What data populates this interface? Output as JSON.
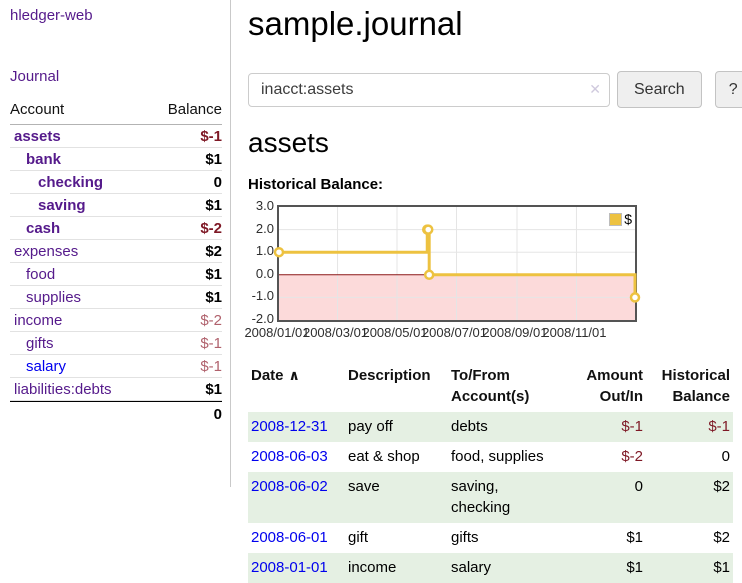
{
  "app": {
    "brand": "hledger-web",
    "nav_journal": "Journal",
    "title": "sample.journal"
  },
  "search": {
    "value": "inacct:assets",
    "button_label": "Search",
    "help_label": "?",
    "clear_icon": "✕"
  },
  "sidebar": {
    "header": {
      "account": "Account",
      "balance": "Balance"
    },
    "accounts": [
      {
        "name": "assets",
        "balance": "$-1"
      },
      {
        "name": "bank",
        "balance": "$1"
      },
      {
        "name": "checking",
        "balance": "0"
      },
      {
        "name": "saving",
        "balance": "$1"
      },
      {
        "name": "cash",
        "balance": "$-2"
      },
      {
        "name": "expenses",
        "balance": "$2"
      },
      {
        "name": "food",
        "balance": "$1"
      },
      {
        "name": "supplies",
        "balance": "$1"
      },
      {
        "name": "income",
        "balance": "$-2"
      },
      {
        "name": "gifts",
        "balance": "$-1"
      },
      {
        "name": "salary",
        "balance": "$-1"
      },
      {
        "name": "liabilities:debts",
        "balance": "$1"
      }
    ],
    "total": "0"
  },
  "account_page": {
    "heading": "assets",
    "chart_title": "Historical Balance:"
  },
  "chart_data": {
    "type": "line",
    "title": "Historical Balance",
    "legend": "$",
    "legend_position": "top-right",
    "grid": true,
    "x_range": [
      "2008-01-01",
      "2008-12-31"
    ],
    "ylim": [
      -2,
      3
    ],
    "y_ticks": [
      3.0,
      2.0,
      1.0,
      0.0,
      -1.0,
      -2.0
    ],
    "x_ticks": [
      "2008/01/01",
      "2008/03/01",
      "2008/05/01",
      "2008/07/01",
      "2008/09/01",
      "2008/11/01"
    ],
    "series": [
      {
        "name": "$",
        "color": "#edc240",
        "steps": true,
        "points": [
          [
            "2008-01-01",
            1
          ],
          [
            "2008-06-01",
            2
          ],
          [
            "2008-06-02",
            2
          ],
          [
            "2008-06-03",
            0
          ],
          [
            "2008-12-31",
            -1
          ]
        ]
      }
    ],
    "negative_region_color": "#fcdada",
    "zero_line_color": "#8c1717",
    "grid_color": "#e5e5e5",
    "frame_color": "#545454"
  },
  "register": {
    "headers": {
      "date": "Date",
      "sort_icon": "∧",
      "description": "Description",
      "accounts": "To/From Account(s)",
      "amount": "Amount Out/In",
      "balance": "Historical Balance"
    },
    "rows": [
      {
        "date": "2008-12-31",
        "description": "pay off",
        "accounts": "debts",
        "amount": "$-1",
        "balance": "$-1"
      },
      {
        "date": "2008-06-03",
        "description": "eat & shop",
        "accounts": "food, supplies",
        "amount": "$-2",
        "balance": "0"
      },
      {
        "date": "2008-06-02",
        "description": "save",
        "accounts": "saving, checking",
        "amount": "0",
        "balance": "$2"
      },
      {
        "date": "2008-06-01",
        "description": "gift",
        "accounts": "gifts",
        "amount": "$1",
        "balance": "$2"
      },
      {
        "date": "2008-01-01",
        "description": "income",
        "accounts": "salary",
        "amount": "$1",
        "balance": "$1"
      }
    ]
  },
  "colors": {
    "link_visited_purple": "#551a8b",
    "link_blue": "#0000ee",
    "negative_strong": "#7e1825",
    "negative_muted": "#b0616c",
    "row_stripe_green": "#e5f0e3",
    "chart_line_yellow": "#edc240"
  }
}
